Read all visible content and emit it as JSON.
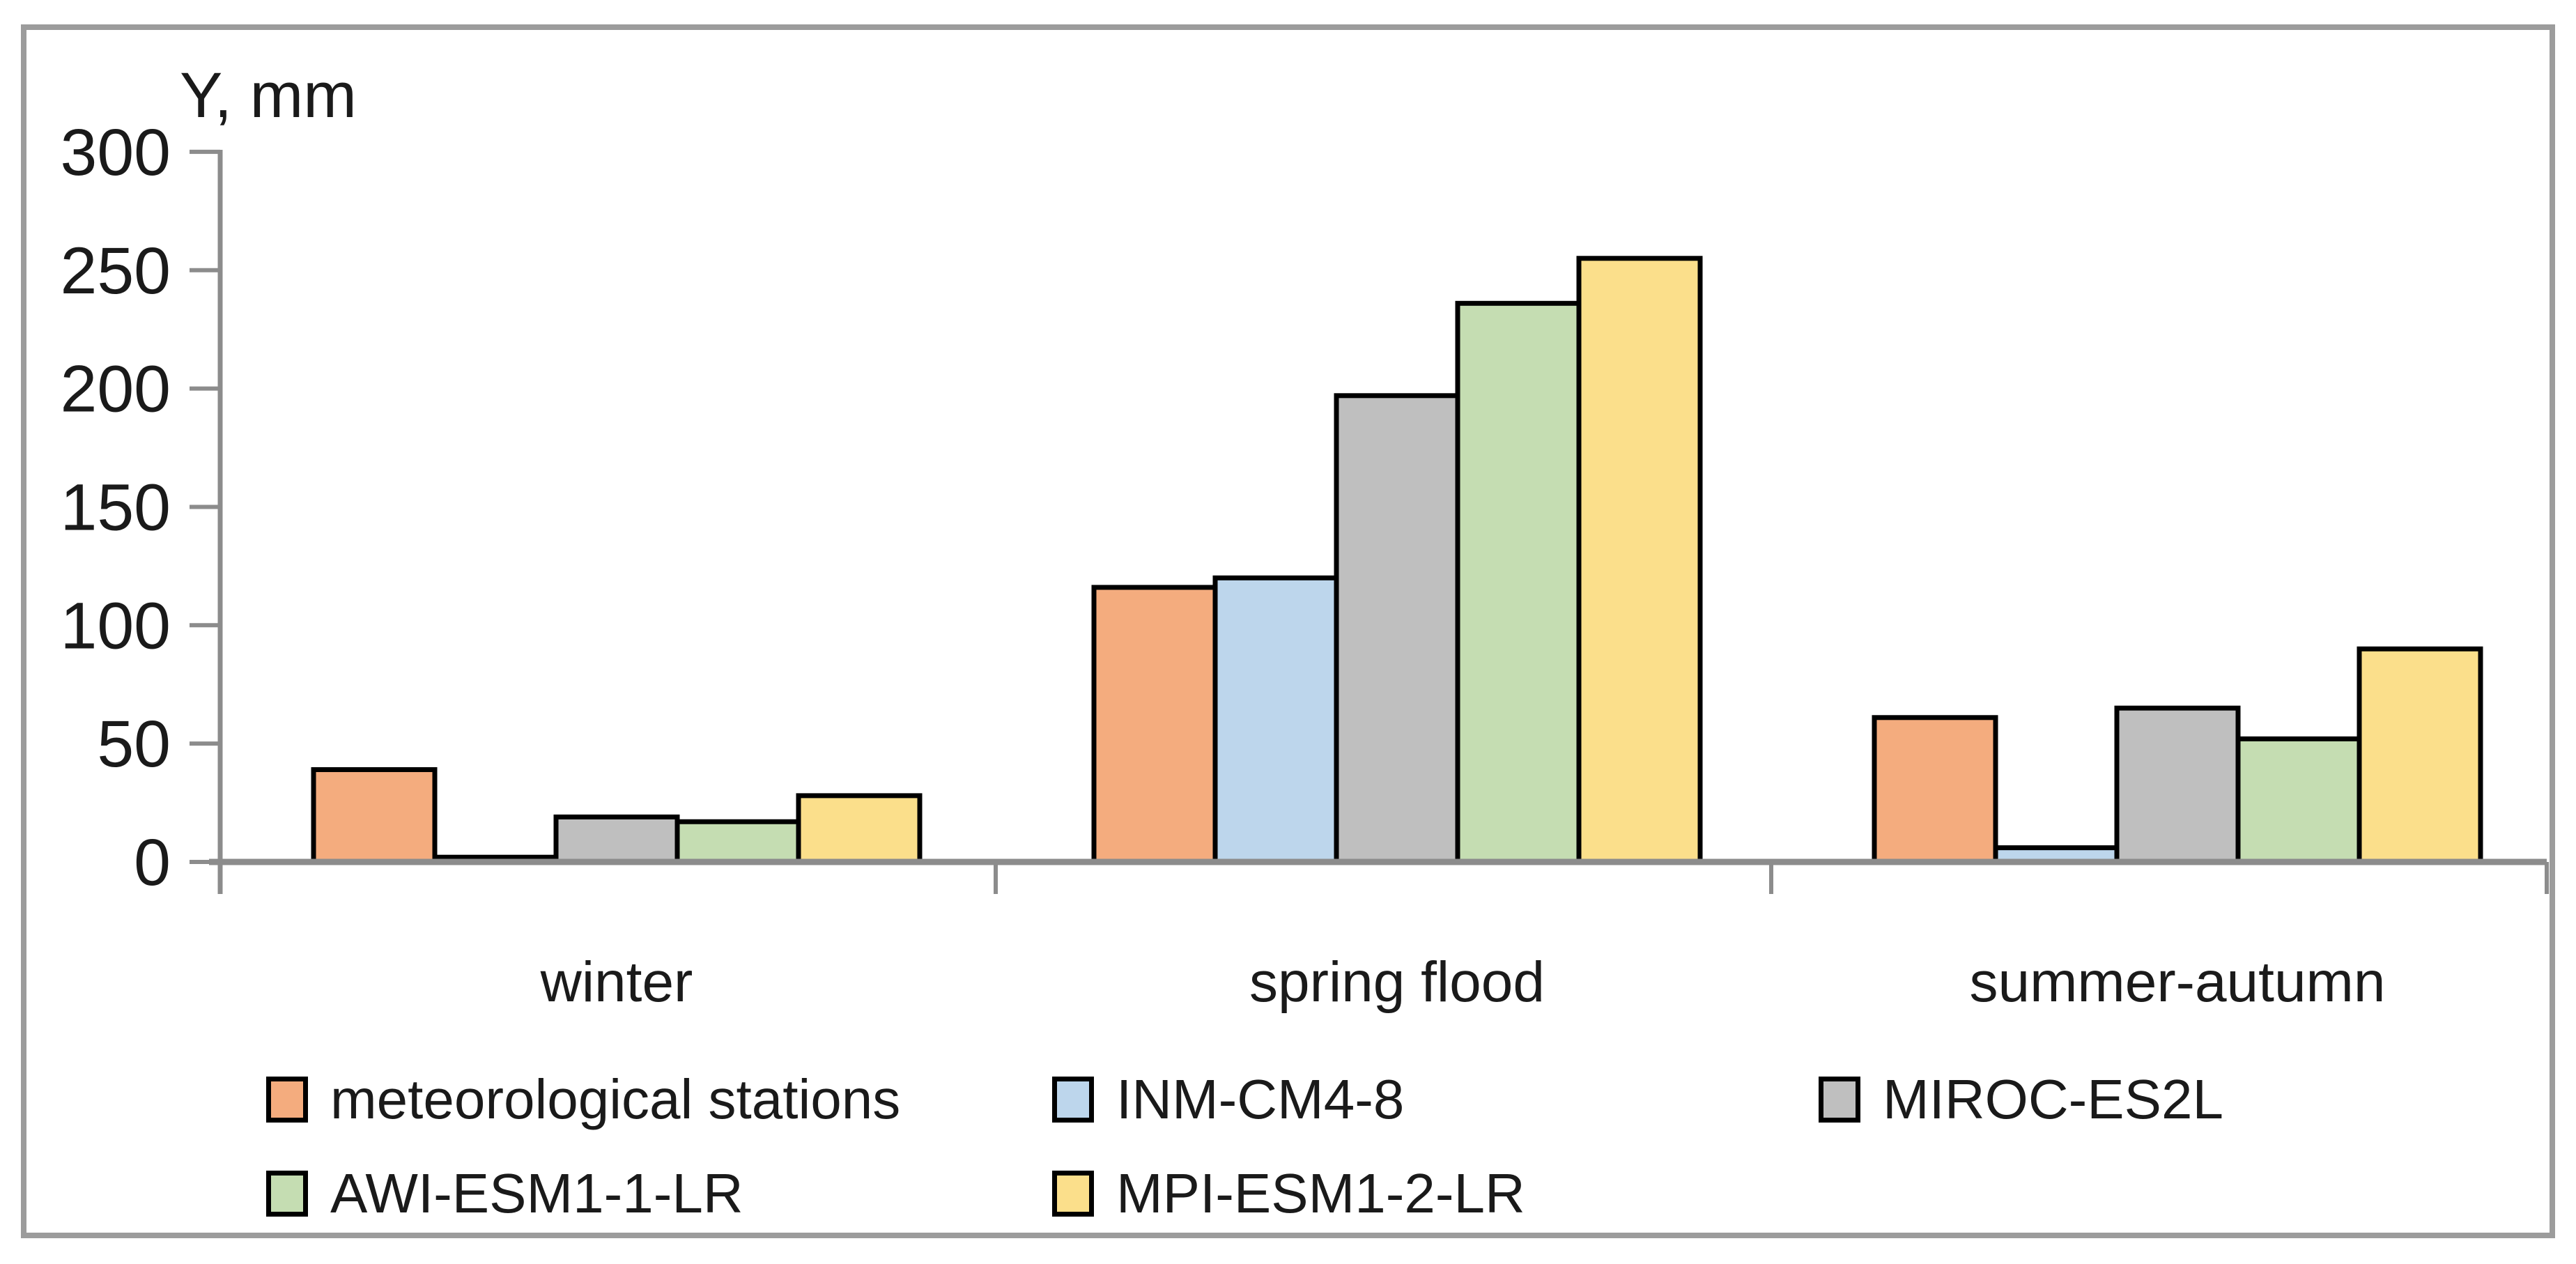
{
  "chart_data": {
    "type": "bar",
    "title": "",
    "ylabel": "Y, mm",
    "xlabel": "",
    "categories": [
      "winter",
      "spring flood",
      "summer-autumn"
    ],
    "yticks": [
      0,
      50,
      100,
      150,
      200,
      250,
      300
    ],
    "ylim": [
      0,
      300
    ],
    "grid": false,
    "legend_position": "bottom",
    "axis_color": "#8c8c8c",
    "bar_border_color": "#000000",
    "series": [
      {
        "name": "meteorological stations",
        "color": "#f4ac7e",
        "values": [
          39,
          116,
          61
        ]
      },
      {
        "name": "INM-CM4-8",
        "color": "#bdd6ec",
        "values": [
          2,
          120,
          6
        ]
      },
      {
        "name": "MIROC-ES2L",
        "color": "#bfbfbf",
        "values": [
          19,
          197,
          65
        ]
      },
      {
        "name": "AWI-ESM1-1-LR",
        "color": "#c5ddb2",
        "values": [
          17,
          236,
          52
        ]
      },
      {
        "name": "MPI-ESM1-2-LR",
        "color": "#fbdf8b",
        "values": [
          28,
          255,
          90
        ]
      }
    ]
  }
}
